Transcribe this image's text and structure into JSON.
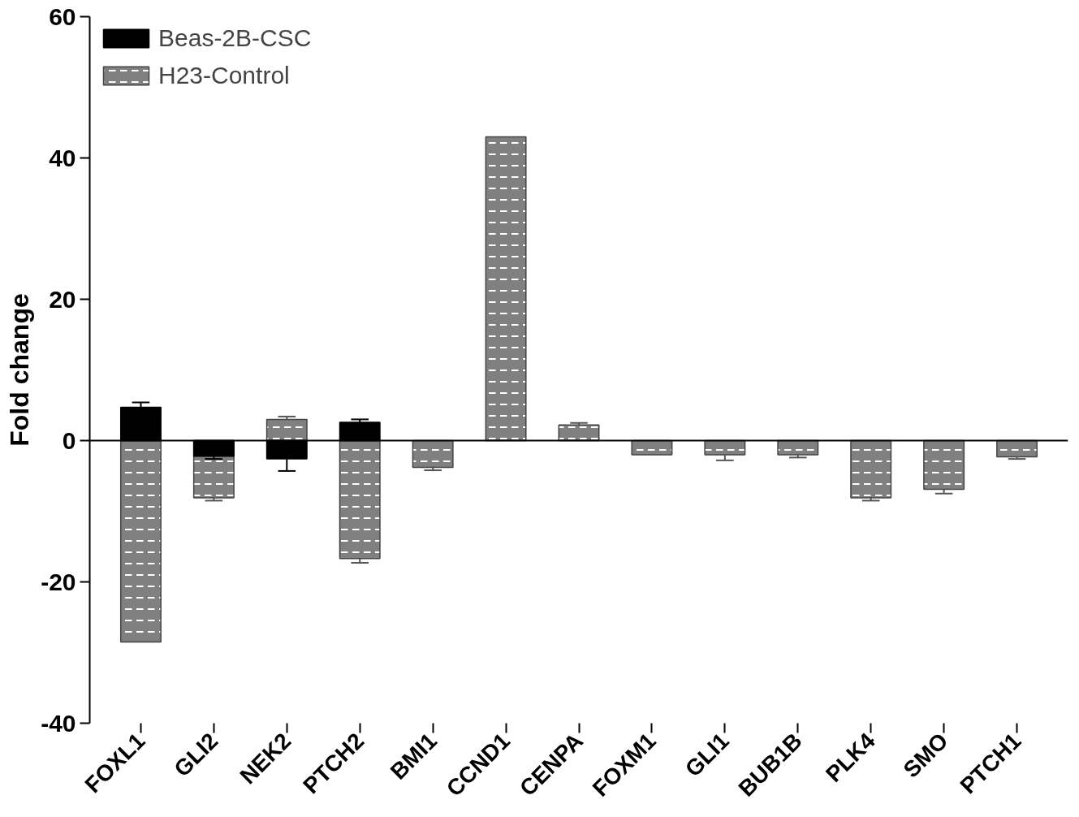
{
  "chart_data": {
    "type": "bar",
    "ylabel": "Fold change",
    "categories": [
      "FOXL1",
      "GLI2",
      "NEK2",
      "PTCH2",
      "BMI1",
      "CCND1",
      "CENPA",
      "FOXM1",
      "GLI1",
      "BUB1B",
      "PLK4",
      "SMO",
      "PTCH1"
    ],
    "series": [
      {
        "name": "H23-Control",
        "color": "#808080",
        "values": [
          -28.5,
          -8.1,
          3.0,
          -16.7,
          -3.8,
          43.0,
          2.2,
          -2.0,
          -2.0,
          -2.0,
          -8.1,
          -6.9,
          -2.3
        ],
        "errors": [
          null,
          [
            -8.5,
            -8.1
          ],
          [
            3.0,
            3.4
          ],
          [
            -17.3,
            -16.7
          ],
          [
            -4.2,
            -3.8
          ],
          null,
          [
            2.2,
            2.5
          ],
          null,
          [
            -2.8,
            -2.0
          ],
          [
            -2.4,
            -2.0
          ],
          [
            -8.5,
            -8.1
          ],
          [
            -7.5,
            -6.9
          ],
          [
            -2.6,
            -2.3
          ]
        ]
      },
      {
        "name": "Beas-2B-CSC",
        "color": "#000000",
        "values": [
          4.7,
          -2.2,
          -2.6,
          2.6,
          null,
          null,
          null,
          null,
          null,
          null,
          null,
          null,
          null
        ],
        "errors": [
          [
            4.7,
            5.4
          ],
          [
            -2.6,
            -2.2
          ],
          [
            -4.3,
            -2.6
          ],
          [
            2.6,
            3.0
          ],
          null,
          null,
          null,
          null,
          null,
          null,
          null,
          null,
          null
        ]
      }
    ],
    "ylim": [
      -40,
      60
    ],
    "yticks": [
      -40,
      -20,
      0,
      20,
      40,
      60
    ],
    "grid": false,
    "legend": "top left",
    "ref_lines": [
      {
        "axis": "y",
        "value": 0,
        "color": "#000000"
      }
    ]
  }
}
